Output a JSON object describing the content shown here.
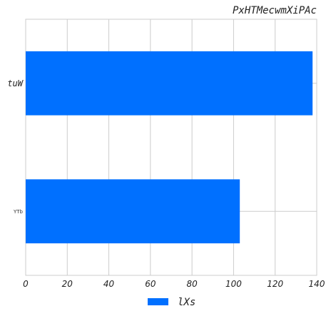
{
  "chart_data": {
    "type": "bar",
    "orientation": "horizontal",
    "title": "PxHTMecwmXiPAc",
    "categories": [
      "tuW",
      "YTb"
    ],
    "series": [
      {
        "name": "lXs",
        "values": [
          138,
          103
        ],
        "color": "#0070ff"
      }
    ],
    "xlim": [
      0,
      140
    ],
    "xticks": [
      "0",
      "20",
      "40",
      "60",
      "80",
      "100",
      "120",
      "140"
    ],
    "grid": true,
    "legend_position": "bottom-center",
    "xlabel": "",
    "ylabel": ""
  }
}
